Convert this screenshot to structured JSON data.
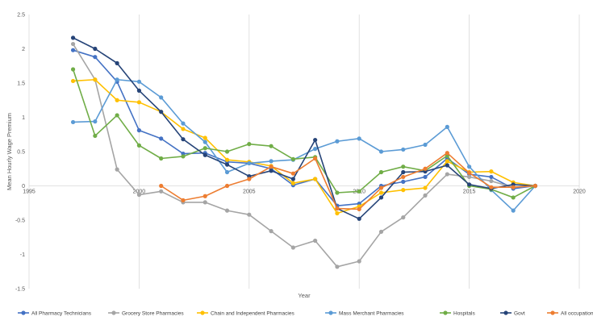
{
  "chart_data": {
    "type": "line",
    "title": "",
    "xlabel": "Year",
    "ylabel": "Mean Hourly Wage Premium",
    "xlim": [
      1995,
      2020
    ],
    "ylim": [
      -1.5,
      2.5
    ],
    "xticks": [
      1995,
      2000,
      2005,
      2010,
      2015,
      2020
    ],
    "yticks": [
      -1.5,
      -1,
      -0.5,
      0,
      0.5,
      1,
      1.5,
      2,
      2.5
    ],
    "grid": "vertical gridlines at x ticks",
    "legend_position": "bottom",
    "series": [
      {
        "name": "All Pharmacy Technicians",
        "color": "#4472C4",
        "points": [
          [
            1997,
            1.98
          ],
          [
            1998,
            1.88
          ],
          [
            1999,
            1.52
          ],
          [
            2000,
            0.81
          ],
          [
            2001,
            0.69
          ],
          [
            2002,
            0.47
          ],
          [
            2003,
            0.48
          ],
          [
            2004,
            0.35
          ],
          [
            2005,
            0.33
          ],
          [
            2006,
            0.25
          ],
          [
            2007,
            0.01
          ],
          [
            2008,
            0.1
          ],
          [
            2009,
            -0.29
          ],
          [
            2010,
            -0.26
          ],
          [
            2011,
            0.0
          ],
          [
            2012,
            0.06
          ],
          [
            2013,
            0.13
          ],
          [
            2014,
            0.4
          ],
          [
            2015,
            0.17
          ],
          [
            2016,
            0.13
          ],
          [
            2017,
            -0.04
          ],
          [
            2018,
            0.0
          ]
        ]
      },
      {
        "name": "Grocery Store Pharmacies",
        "color": "#A5A5A5",
        "points": [
          [
            1997,
            2.07
          ],
          [
            1998,
            1.55
          ],
          [
            1999,
            0.24
          ],
          [
            2000,
            -0.13
          ],
          [
            2001,
            -0.08
          ],
          [
            2002,
            -0.24
          ],
          [
            2003,
            -0.24
          ],
          [
            2004,
            -0.36
          ],
          [
            2005,
            -0.42
          ],
          [
            2006,
            -0.66
          ],
          [
            2007,
            -0.9
          ],
          [
            2008,
            -0.8
          ],
          [
            2009,
            -1.18
          ],
          [
            2010,
            -1.1
          ],
          [
            2011,
            -0.67
          ],
          [
            2012,
            -0.46
          ],
          [
            2013,
            -0.14
          ],
          [
            2014,
            0.17
          ],
          [
            2015,
            0.13
          ],
          [
            2016,
            0.07
          ],
          [
            2017,
            -0.02
          ],
          [
            2018,
            0.0
          ]
        ]
      },
      {
        "name": "Chain and Independent Pharmacies",
        "color": "#FFC000",
        "points": [
          [
            1997,
            1.53
          ],
          [
            1998,
            1.55
          ],
          [
            1999,
            1.25
          ],
          [
            2000,
            1.22
          ],
          [
            2001,
            1.08
          ],
          [
            2002,
            0.83
          ],
          [
            2003,
            0.7
          ],
          [
            2004,
            0.38
          ],
          [
            2005,
            0.35
          ],
          [
            2006,
            0.29
          ],
          [
            2007,
            0.04
          ],
          [
            2008,
            0.1
          ],
          [
            2009,
            -0.4
          ],
          [
            2010,
            -0.3
          ],
          [
            2011,
            -0.1
          ],
          [
            2012,
            -0.06
          ],
          [
            2013,
            -0.03
          ],
          [
            2014,
            0.36
          ],
          [
            2015,
            0.2
          ],
          [
            2016,
            0.21
          ],
          [
            2017,
            0.05
          ],
          [
            2018,
            0.0
          ]
        ]
      },
      {
        "name": "Mass Merchant Pharmacies",
        "color": "#5B9BD5",
        "points": [
          [
            1997,
            0.93
          ],
          [
            1998,
            0.94
          ],
          [
            1999,
            1.55
          ],
          [
            2000,
            1.52
          ],
          [
            2001,
            1.29
          ],
          [
            2002,
            0.91
          ],
          [
            2003,
            0.64
          ],
          [
            2004,
            0.2
          ],
          [
            2005,
            0.33
          ],
          [
            2006,
            0.36
          ],
          [
            2007,
            0.38
          ],
          [
            2008,
            0.54
          ],
          [
            2009,
            0.65
          ],
          [
            2010,
            0.69
          ],
          [
            2011,
            0.5
          ],
          [
            2012,
            0.53
          ],
          [
            2013,
            0.6
          ],
          [
            2014,
            0.86
          ],
          [
            2015,
            0.28
          ],
          [
            2016,
            -0.06
          ],
          [
            2017,
            -0.36
          ],
          [
            2018,
            0.0
          ]
        ]
      },
      {
        "name": "Hospitals",
        "color": "#70AD47",
        "points": [
          [
            1997,
            1.7
          ],
          [
            1998,
            0.73
          ],
          [
            1999,
            1.03
          ],
          [
            2000,
            0.59
          ],
          [
            2001,
            0.4
          ],
          [
            2002,
            0.43
          ],
          [
            2003,
            0.55
          ],
          [
            2004,
            0.5
          ],
          [
            2005,
            0.61
          ],
          [
            2006,
            0.58
          ],
          [
            2007,
            0.39
          ],
          [
            2008,
            0.42
          ],
          [
            2009,
            -0.1
          ],
          [
            2010,
            -0.08
          ],
          [
            2011,
            0.2
          ],
          [
            2012,
            0.28
          ],
          [
            2013,
            0.22
          ],
          [
            2014,
            0.44
          ],
          [
            2015,
            0.0
          ],
          [
            2016,
            -0.05
          ],
          [
            2017,
            -0.17
          ],
          [
            2018,
            0.0
          ]
        ]
      },
      {
        "name": "Govt",
        "color": "#264478",
        "points": [
          [
            1997,
            2.16
          ],
          [
            1998,
            2.0
          ],
          [
            1999,
            1.79
          ],
          [
            2000,
            1.39
          ],
          [
            2001,
            1.08
          ],
          [
            2002,
            0.68
          ],
          [
            2003,
            0.45
          ],
          [
            2004,
            0.31
          ],
          [
            2005,
            0.14
          ],
          [
            2006,
            0.22
          ],
          [
            2007,
            0.1
          ],
          [
            2008,
            0.67
          ],
          [
            2009,
            -0.33
          ],
          [
            2010,
            -0.48
          ],
          [
            2011,
            -0.17
          ],
          [
            2012,
            0.2
          ],
          [
            2013,
            0.21
          ],
          [
            2014,
            0.3
          ],
          [
            2015,
            0.02
          ],
          [
            2016,
            -0.04
          ],
          [
            2017,
            0.02
          ],
          [
            2018,
            0.0
          ]
        ]
      },
      {
        "name": "All occupations",
        "color": "#ED7D31",
        "points": [
          [
            2001,
            0.0
          ],
          [
            2002,
            -0.21
          ],
          [
            2003,
            -0.15
          ],
          [
            2004,
            0.0
          ],
          [
            2005,
            0.1
          ],
          [
            2006,
            0.28
          ],
          [
            2007,
            0.18
          ],
          [
            2008,
            0.4
          ],
          [
            2009,
            -0.33
          ],
          [
            2010,
            -0.34
          ],
          [
            2011,
            -0.03
          ],
          [
            2012,
            0.13
          ],
          [
            2013,
            0.25
          ],
          [
            2014,
            0.48
          ],
          [
            2015,
            0.19
          ],
          [
            2016,
            -0.02
          ],
          [
            2017,
            -0.02
          ],
          [
            2018,
            0.0
          ]
        ]
      }
    ]
  }
}
